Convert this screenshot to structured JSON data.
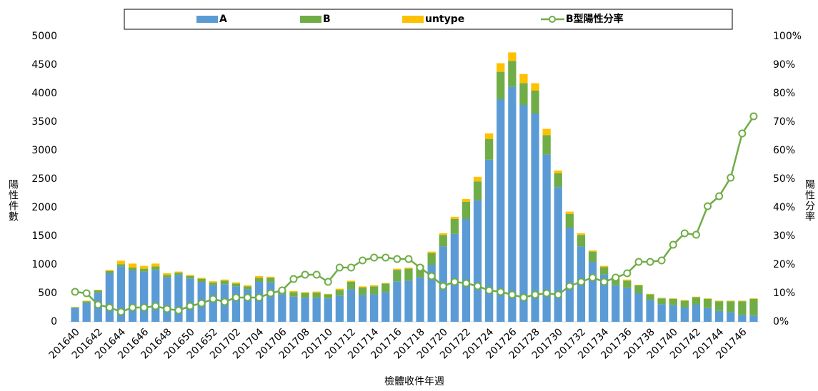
{
  "chart_data": {
    "type": "bar-line",
    "x_label": "檢體收件年週",
    "y_label": "陽性件數",
    "y2_label": "陽性分率",
    "categories": [
      "201640",
      null,
      "201642",
      null,
      "201644",
      null,
      "201646",
      null,
      "201648",
      null,
      "201650",
      null,
      "201652",
      null,
      "201702",
      null,
      "201704",
      null,
      "201706",
      null,
      "201708",
      null,
      "201710",
      null,
      "201712",
      null,
      "201714",
      null,
      "201716",
      null,
      "201718",
      null,
      "201720",
      null,
      "201722",
      null,
      "201724",
      null,
      "201726",
      null,
      "201728",
      null,
      "201730",
      null,
      "201732",
      null,
      "201734",
      null,
      "201736",
      null,
      "201738",
      null,
      "201740",
      null,
      "201742",
      null,
      "201744",
      null,
      "201746",
      null
    ],
    "series": [
      {
        "name": "A",
        "color": "#5b9bd5",
        "kind": "bar",
        "values": [
          240,
          330,
          510,
          850,
          970,
          900,
          880,
          910,
          780,
          820,
          760,
          700,
          640,
          660,
          620,
          570,
          700,
          690,
          480,
          440,
          420,
          420,
          410,
          460,
          570,
          470,
          480,
          520,
          710,
          720,
          780,
          1000,
          1320,
          1540,
          1800,
          2130,
          2840,
          3900,
          4120,
          3800,
          3650,
          2930,
          2360,
          1650,
          1320,
          1050,
          830,
          640,
          590,
          500,
          380,
          310,
          290,
          250,
          300,
          240,
          190,
          170,
          120,
          110
        ]
      },
      {
        "name": "B",
        "color": "#70ad47",
        "kind": "bar",
        "values": [
          15,
          30,
          40,
          40,
          40,
          50,
          50,
          60,
          40,
          40,
          40,
          50,
          50,
          60,
          50,
          50,
          70,
          80,
          60,
          80,
          85,
          90,
          70,
          100,
          130,
          130,
          140,
          150,
          200,
          210,
          200,
          200,
          200,
          260,
          300,
          330,
          360,
          480,
          450,
          380,
          400,
          340,
          240,
          240,
          200,
          180,
          130,
          110,
          130,
          140,
          100,
          100,
          110,
          120,
          130,
          160,
          170,
          190,
          240,
          290
        ]
      },
      {
        "name": "untype",
        "color": "#ffc000",
        "kind": "bar",
        "values": [
          5,
          10,
          10,
          20,
          60,
          70,
          50,
          50,
          30,
          20,
          20,
          20,
          20,
          20,
          20,
          20,
          30,
          20,
          20,
          20,
          15,
          20,
          10,
          20,
          20,
          20,
          20,
          10,
          20,
          20,
          20,
          30,
          30,
          40,
          50,
          80,
          100,
          150,
          150,
          160,
          130,
          110,
          50,
          40,
          30,
          20,
          20,
          10,
          20,
          10,
          10,
          10,
          10,
          10,
          10,
          10,
          10,
          10,
          10,
          10
        ]
      },
      {
        "name": "B型陽性分率",
        "color": "#70ad47",
        "kind": "line",
        "axis": "y2",
        "values": [
          10.5,
          10,
          6,
          5,
          3.5,
          5,
          5,
          5.5,
          4.5,
          4,
          5.5,
          6.5,
          8,
          7,
          8.5,
          8.5,
          8.5,
          10,
          11,
          15,
          16.5,
          16.5,
          14,
          19,
          19,
          21.5,
          22.5,
          22.5,
          22,
          22,
          19,
          16,
          12.5,
          14,
          13.5,
          12.5,
          11,
          10.5,
          9.5,
          8.5,
          9.5,
          10,
          9.5,
          12.5,
          14,
          15.5,
          14,
          15.5,
          17,
          21,
          21,
          21.5,
          27,
          31,
          30.5,
          40.5,
          44,
          50.5,
          66,
          72
        ]
      }
    ],
    "ylim": [
      0,
      5000
    ],
    "yticks": [
      0,
      500,
      1000,
      1500,
      2000,
      2500,
      3000,
      3500,
      4000,
      4500,
      5000
    ],
    "y2lim": [
      0,
      100
    ],
    "y2ticks": [
      {
        "value": 0,
        "label": "0%"
      },
      {
        "value": 10,
        "label": "10%"
      },
      {
        "value": 20,
        "label": "20%"
      },
      {
        "value": 30,
        "label": "30%"
      },
      {
        "value": 40,
        "label": "40%"
      },
      {
        "value": 50,
        "label": "50%"
      },
      {
        "value": 60,
        "label": "60%"
      },
      {
        "value": 70,
        "label": "70%"
      },
      {
        "value": 80,
        "label": "80%"
      },
      {
        "value": 90,
        "label": "90%"
      },
      {
        "value": 100,
        "label": "100%"
      }
    ],
    "legend": "top"
  }
}
